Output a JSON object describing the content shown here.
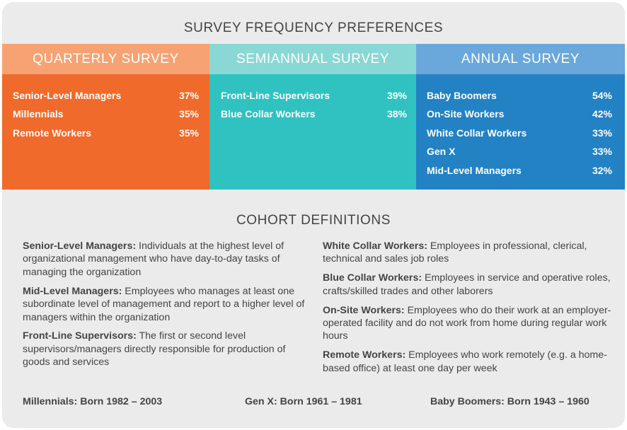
{
  "title": "SURVEY FREQUENCY PREFERENCES",
  "columns": [
    {
      "header": "QUARTERLY SURVEY",
      "color": "#f06a2b",
      "rows": [
        {
          "label": "Senior-Level Managers",
          "value": "37%"
        },
        {
          "label": "Millennials",
          "value": "35%"
        },
        {
          "label": "Remote Workers",
          "value": "35%"
        }
      ]
    },
    {
      "header": "SEMIANNUAL SURVEY",
      "color": "#2fc2c0",
      "rows": [
        {
          "label": "Front-Line Supervisors",
          "value": "39%"
        },
        {
          "label": "Blue Collar Workers",
          "value": "38%"
        }
      ]
    },
    {
      "header": "ANNUAL SURVEY",
      "color": "#2282c4",
      "rows": [
        {
          "label": "Baby Boomers",
          "value": "54%"
        },
        {
          "label": "On-Site Workers",
          "value": "42%"
        },
        {
          "label": "White Collar Workers",
          "value": "33%"
        },
        {
          "label": "Gen X",
          "value": "33%"
        },
        {
          "label": "Mid-Level Managers",
          "value": "32%"
        }
      ]
    }
  ],
  "definitions_title": "COHORT DEFINITIONS",
  "definitions_left": [
    {
      "term": "Senior-Level Managers:",
      "text": " Individuals at the highest level of organizational management who have day-to-day tasks of managing the organization"
    },
    {
      "term": "Mid-Level Managers:",
      "text": " Employees who manages at least one subordinate level of management and report to a higher level of managers within the organization"
    },
    {
      "term": "Front-Line Supervisors:",
      "text": " The first or second level supervisors/managers directly responsible for production of goods and services"
    }
  ],
  "definitions_right": [
    {
      "term": "White Collar Workers:",
      "text": " Employees in professional, clerical, technical and sales job roles"
    },
    {
      "term": "Blue Collar Workers:",
      "text": "  Employees in service and operative roles, crafts/skilled trades and other laborers"
    },
    {
      "term": "On-Site Workers:",
      "text": " Employees who do their work at an employer-operated facility and do not work from home during regular work hours"
    },
    {
      "term": "Remote Workers:",
      "text": "  Employees who work remotely (e.g. a home-based office) at least one day per week"
    }
  ],
  "generations": {
    "millennials": "Millennials: Born 1982 – 2003",
    "genx": "Gen X: Born 1961 – 1981",
    "boomers": "Baby Boomers: Born 1943 – 1960"
  }
}
